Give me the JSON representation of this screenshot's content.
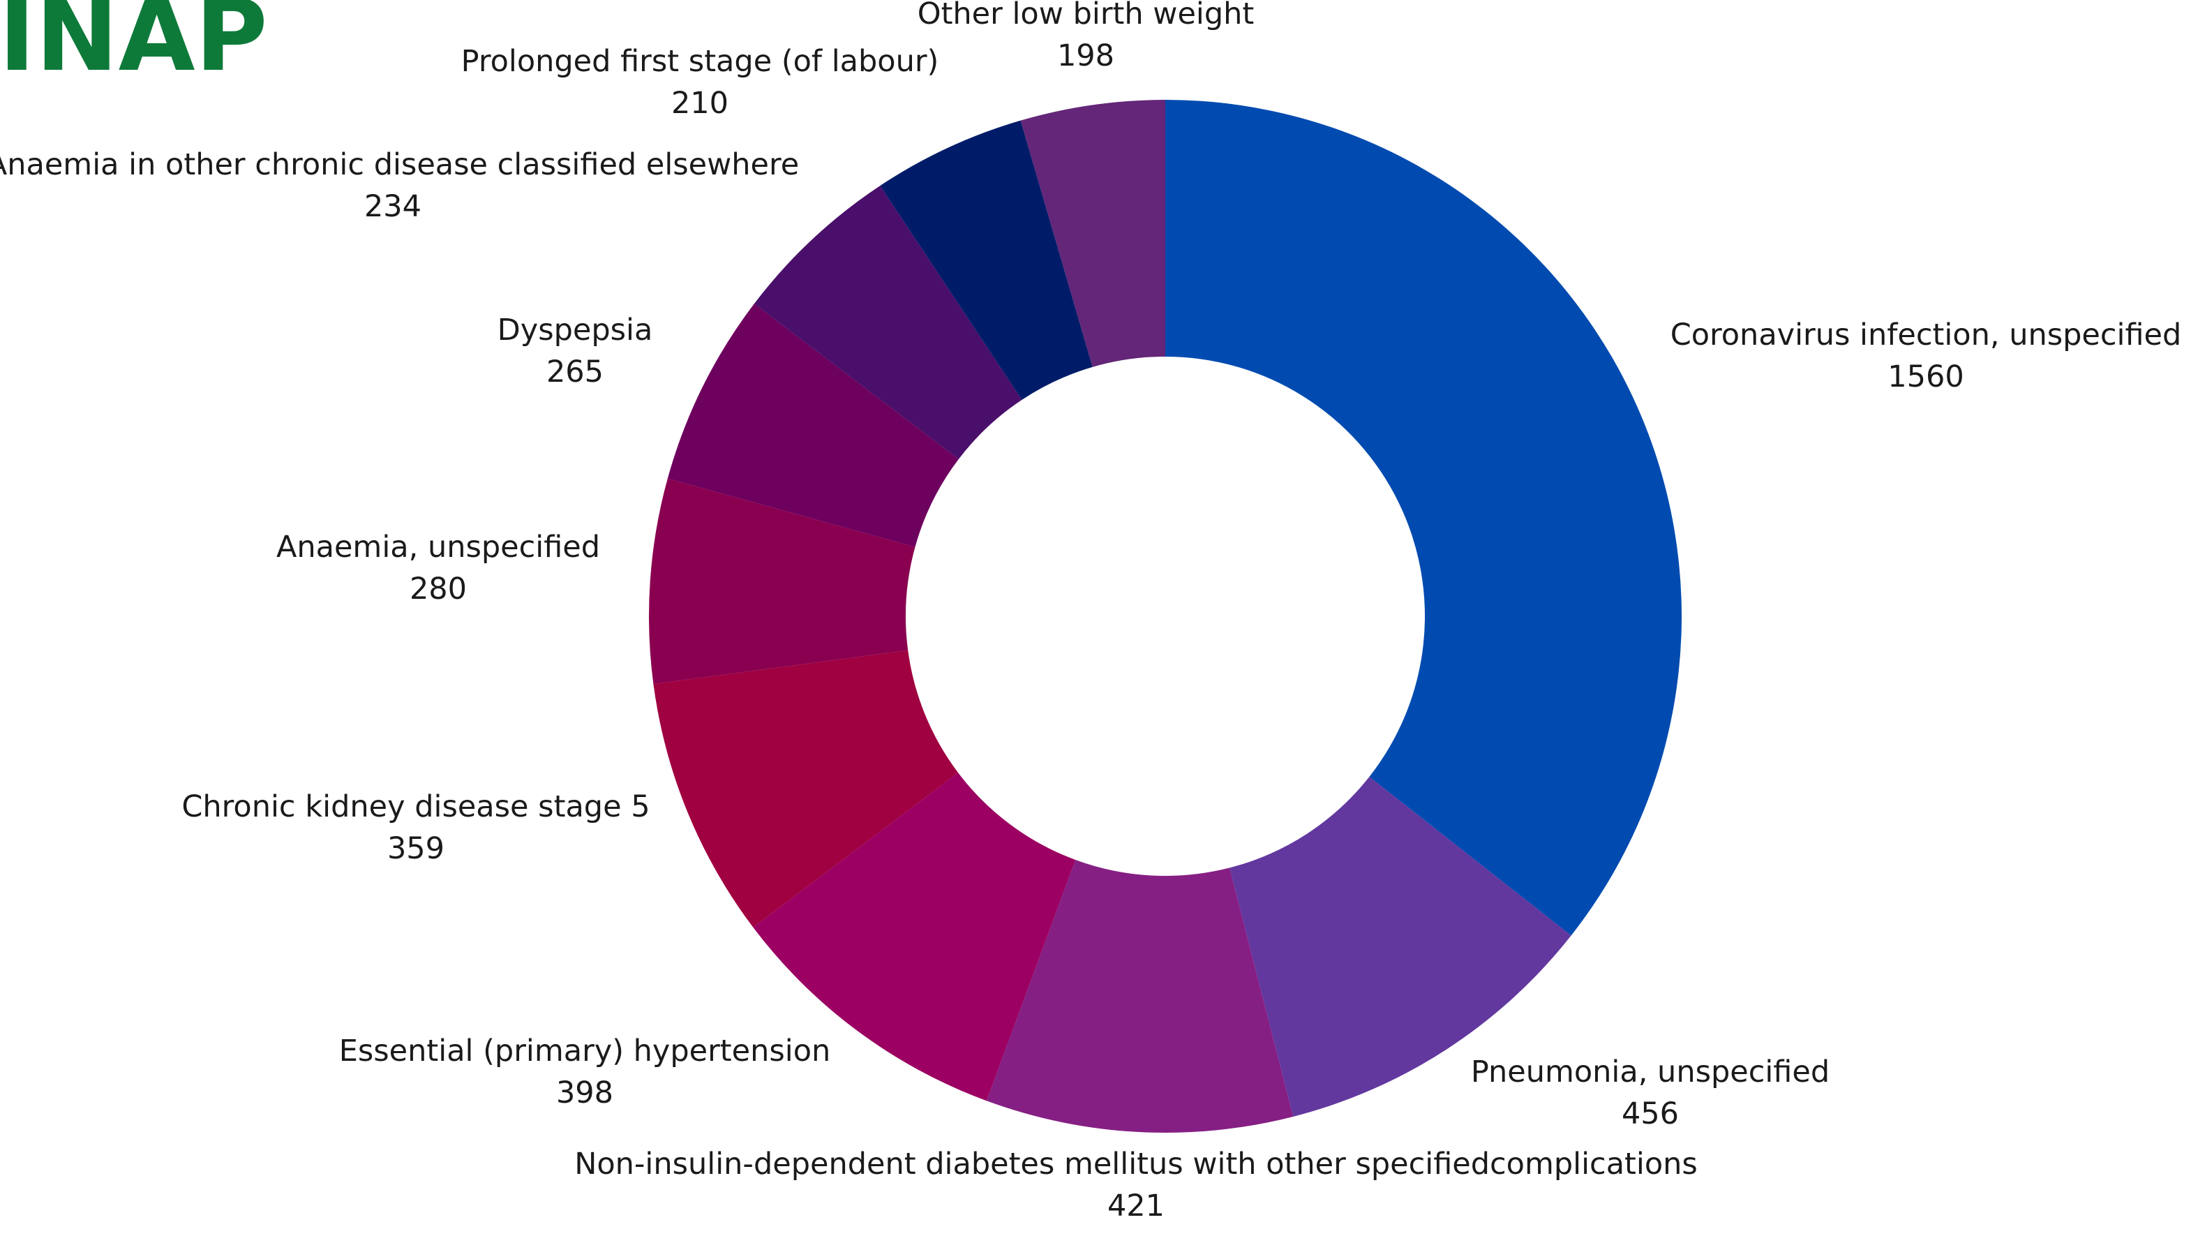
{
  "brand": {
    "title": "INAP",
    "color": "#0e7a3a"
  },
  "chart_data": {
    "type": "pie",
    "variant": "donut",
    "start": "top, clockwise",
    "labels": "outside, name and value",
    "legend": "none",
    "slices": [
      {
        "label": "Coronavirus infection, unspecified",
        "value": 1560,
        "color": "#014bb0"
      },
      {
        "label": "Pneumonia, unspecified",
        "value": 456,
        "color": "#62389f"
      },
      {
        "label": "Non-insulin-dependent diabetes mellitus with other specifiedcomplications",
        "value": 421,
        "color": "#861f84"
      },
      {
        "label": "Essential (primary) hypertension",
        "value": 398,
        "color": "#9b0062"
      },
      {
        "label": "Chronic kidney disease stage 5",
        "value": 359,
        "color": "#a00141"
      },
      {
        "label": "Anaemia, unspecified",
        "value": 280,
        "color": "#8a0050"
      },
      {
        "label": "Dyspepsia",
        "value": 265,
        "color": "#6e005e"
      },
      {
        "label": "Anaemia in other chronic disease classified elsewhere",
        "value": 234,
        "color": "#4a0f6b"
      },
      {
        "label": "Prolonged first stage (of labour)",
        "value": 210,
        "color": "#001c69"
      },
      {
        "label": "Other low birth weight",
        "value": 198,
        "color": "#632678"
      }
    ]
  }
}
